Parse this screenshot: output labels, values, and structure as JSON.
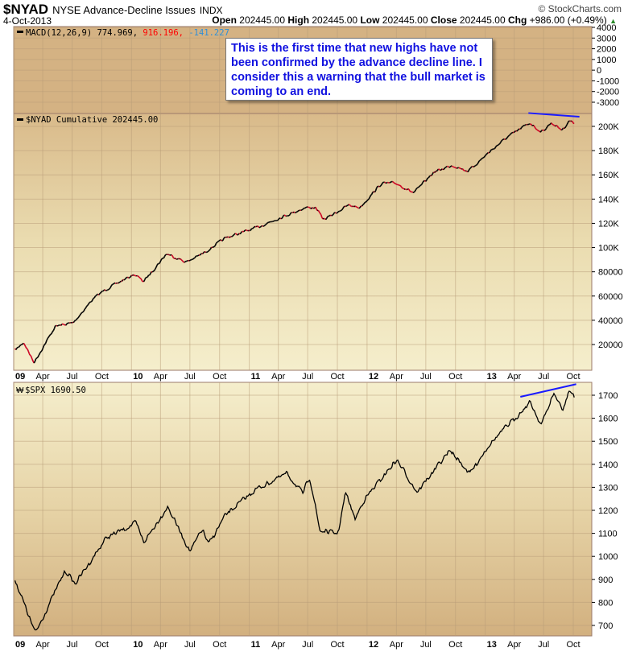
{
  "header": {
    "symbol": "$NYAD",
    "name": "NYSE Advance-Decline Issues",
    "exchange": "INDX",
    "date": "4-Oct-2013",
    "copyright": "© StockCharts.com",
    "open_label": "Open",
    "open": "202445.00",
    "high_label": "High",
    "high": "202445.00",
    "low_label": "Low",
    "low": "202445.00",
    "close_label": "Close",
    "close": "202445.00",
    "chg_label": "Chg",
    "chg": "+986.00 (+0.49%)",
    "chg_icon": "up-triangle-icon"
  },
  "colors": {
    "panel_light": "#f3ebc8",
    "panel_dark": "#d2b07f",
    "macd_bg": "#d4b283",
    "line_up": "#000000",
    "line_down": "#cc0022",
    "trendline": "#1a1aff",
    "annotation_text": "#1010e0",
    "macd_signal": "#ff0000",
    "macd_hist": "#2e8fd8"
  },
  "annotation": "This is the first time that new highs have not been confirmed by the advance decline line. I consider this a warning that the bull market is coming to an end.",
  "chart_data": [
    {
      "type": "line",
      "panel": "MACD",
      "legend": "MACD(12,26,9)",
      "values_text": [
        "774.969",
        "916.196",
        "-141.227"
      ],
      "yticks": [
        4000,
        3000,
        2000,
        1000,
        0,
        -1000,
        -2000,
        -3000
      ],
      "ylim": [
        -3500,
        4000
      ]
    },
    {
      "type": "line",
      "panel": "NYAD",
      "legend": "$NYAD  Cumulative 202445.00",
      "ylim": [
        0,
        215000
      ],
      "yticks": [
        20000,
        40000,
        60000,
        80000,
        100000,
        120000,
        140000,
        160000,
        180000,
        200000
      ],
      "ytick_labels": [
        "20000",
        "40000",
        "60000",
        "80000",
        "100K",
        "120K",
        "140K",
        "160K",
        "180K",
        "200K"
      ],
      "x": [
        "2009-01-05",
        "2009-02-01",
        "2009-03-05",
        "2009-05-10",
        "2009-07-05",
        "2009-09-05",
        "2009-10-10",
        "2010-01-10",
        "2010-02-08",
        "2010-04-20",
        "2010-06-20",
        "2010-08-10",
        "2010-10-20",
        "2011-01-20",
        "2011-04-10",
        "2011-06-25",
        "2011-07-25",
        "2011-08-20",
        "2011-11-05",
        "2011-12-10",
        "2012-02-15",
        "2012-04-01",
        "2012-05-25",
        "2012-07-25",
        "2012-09-20",
        "2012-11-10",
        "2013-01-10",
        "2013-03-10",
        "2013-05-20",
        "2013-06-24",
        "2013-07-25",
        "2013-08-28",
        "2013-09-20",
        "2013-10-04"
      ],
      "values": [
        15000,
        22000,
        5000,
        35000,
        38000,
        58000,
        65000,
        78000,
        72000,
        95000,
        88000,
        95000,
        108000,
        116000,
        125000,
        133000,
        133000,
        123000,
        135000,
        133000,
        153000,
        153000,
        145000,
        162000,
        168000,
        163000,
        178000,
        191000,
        203000,
        195000,
        203000,
        197000,
        205000,
        202445
      ],
      "trendline": {
        "x": [
          "2013-05-15",
          "2013-10-20"
        ],
        "values": [
          211000,
          208000
        ]
      }
    },
    {
      "type": "line",
      "panel": "SPX",
      "legend": "$SPX  1690.50",
      "ylim": [
        650,
        1760
      ],
      "yticks": [
        700,
        800,
        900,
        1000,
        1100,
        1200,
        1300,
        1400,
        1500,
        1600,
        1700
      ],
      "x": [
        "2009-01-05",
        "2009-03-09",
        "2009-06-10",
        "2009-07-10",
        "2009-10-15",
        "2010-01-15",
        "2010-02-08",
        "2010-04-23",
        "2010-07-02",
        "2010-08-09",
        "2010-08-27",
        "2010-10-20",
        "2011-01-20",
        "2011-04-29",
        "2011-06-16",
        "2011-07-07",
        "2011-08-08",
        "2011-10-03",
        "2011-10-27",
        "2011-11-25",
        "2011-12-20",
        "2012-04-02",
        "2012-06-04",
        "2012-09-14",
        "2012-11-15",
        "2013-01-10",
        "2013-05-21",
        "2013-06-24",
        "2013-08-02",
        "2013-08-30",
        "2013-09-18",
        "2013-10-04"
      ],
      "values": [
        900,
        666,
        940,
        880,
        1080,
        1145,
        1060,
        1217,
        1020,
        1120,
        1050,
        1180,
        1290,
        1360,
        1270,
        1350,
        1110,
        1100,
        1280,
        1160,
        1240,
        1420,
        1280,
        1460,
        1360,
        1480,
        1670,
        1570,
        1710,
        1630,
        1725,
        1690.5
      ],
      "trendline": {
        "x": [
          "2013-04-20",
          "2013-10-10"
        ],
        "values": [
          1693,
          1748
        ]
      }
    }
  ],
  "x_axis": {
    "labels": [
      "09",
      "Apr",
      "Jul",
      "Oct",
      "10",
      "Apr",
      "Jul",
      "Oct",
      "11",
      "Apr",
      "Jul",
      "Oct",
      "12",
      "Apr",
      "Jul",
      "Oct",
      "13",
      "Apr",
      "Jul",
      "Oct"
    ],
    "year_labels": [
      "09",
      "10",
      "11",
      "12",
      "13"
    ]
  }
}
